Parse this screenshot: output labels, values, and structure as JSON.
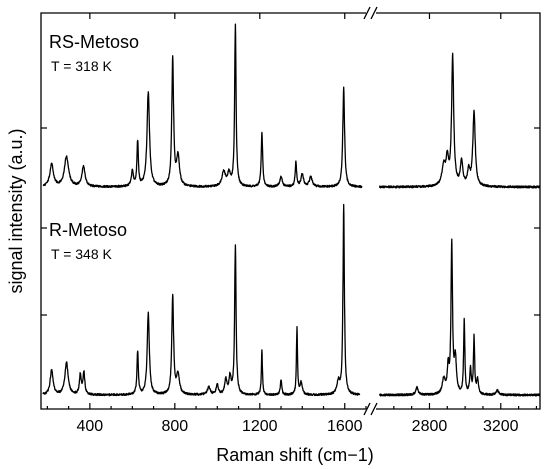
{
  "chart_data": {
    "type": "line",
    "xlabel": "Raman shift (cm−1)",
    "ylabel": "signal intensity (a.u.)",
    "x_axis_break": [
      1700,
      2500
    ],
    "xlim_left": [
      170,
      1700
    ],
    "xlim_right": [
      2500,
      3420
    ],
    "x_ticks": [
      400,
      800,
      1200,
      1600,
      2800,
      3200
    ],
    "x_tick_labels": [
      "400",
      "800",
      "1200",
      "1600",
      "2800",
      "3200"
    ],
    "y_tick_labels": "none",
    "baseline": 0.02,
    "series": [
      {
        "name": "RS-Metoso",
        "label": "RS-Metoso",
        "temperature": "T = 318 K",
        "offset": 1.0,
        "peaks": [
          [
            220,
            0.09,
            10
          ],
          [
            290,
            0.12,
            12
          ],
          [
            370,
            0.08,
            9
          ],
          [
            600,
            0.06,
            6
          ],
          [
            625,
            0.18,
            4
          ],
          [
            675,
            0.38,
            7
          ],
          [
            790,
            0.52,
            5
          ],
          [
            815,
            0.12,
            8
          ],
          [
            1030,
            0.06,
            10
          ],
          [
            1055,
            0.05,
            8
          ],
          [
            1085,
            0.65,
            4
          ],
          [
            1210,
            0.22,
            4
          ],
          [
            1300,
            0.04,
            7
          ],
          [
            1370,
            0.1,
            4
          ],
          [
            1400,
            0.05,
            7
          ],
          [
            1440,
            0.04,
            8
          ],
          [
            1595,
            0.4,
            5
          ],
          [
            2880,
            0.08,
            12
          ],
          [
            2900,
            0.1,
            8
          ],
          [
            2930,
            0.52,
            7
          ],
          [
            2980,
            0.1,
            8
          ],
          [
            3020,
            0.06,
            8
          ],
          [
            3050,
            0.3,
            8
          ]
        ]
      },
      {
        "name": "R-Metoso",
        "label": "R-Metoso",
        "temperature": "T = 348 K",
        "offset": 0.0,
        "peaks": [
          [
            220,
            0.1,
            8
          ],
          [
            290,
            0.13,
            9
          ],
          [
            355,
            0.08,
            5
          ],
          [
            372,
            0.09,
            5
          ],
          [
            625,
            0.17,
            4
          ],
          [
            675,
            0.33,
            6
          ],
          [
            790,
            0.4,
            5
          ],
          [
            815,
            0.08,
            8
          ],
          [
            960,
            0.03,
            8
          ],
          [
            1000,
            0.04,
            6
          ],
          [
            1040,
            0.06,
            6
          ],
          [
            1060,
            0.07,
            6
          ],
          [
            1085,
            0.6,
            4
          ],
          [
            1210,
            0.18,
            3
          ],
          [
            1300,
            0.06,
            4
          ],
          [
            1375,
            0.27,
            3
          ],
          [
            1395,
            0.05,
            6
          ],
          [
            1570,
            0.05,
            8
          ],
          [
            1595,
            0.76,
            4
          ],
          [
            2730,
            0.03,
            8
          ],
          [
            2880,
            0.06,
            10
          ],
          [
            2905,
            0.1,
            6
          ],
          [
            2925,
            0.6,
            5
          ],
          [
            2945,
            0.14,
            7
          ],
          [
            2995,
            0.3,
            4
          ],
          [
            3030,
            0.1,
            5
          ],
          [
            3050,
            0.23,
            4
          ],
          [
            3070,
            0.06,
            6
          ],
          [
            3180,
            0.02,
            8
          ]
        ]
      }
    ],
    "legend": "none",
    "grid": false
  }
}
